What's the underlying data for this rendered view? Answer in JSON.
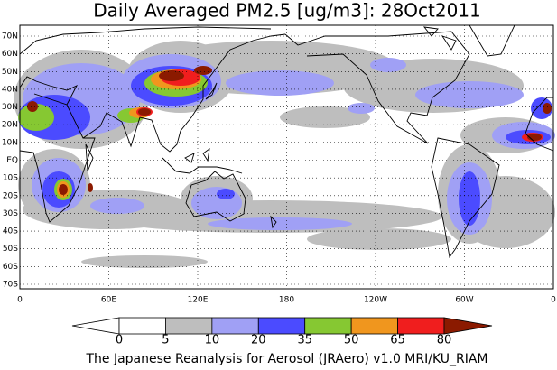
{
  "title": "Daily Averaged PM2.5 [ug/m3]: 28Oct2011",
  "lat_labels": [
    "70N",
    "60N",
    "50N",
    "40N",
    "30N",
    "20N",
    "10N",
    "EQ",
    "10S",
    "20S",
    "30S",
    "40S",
    "50S",
    "60S",
    "70S"
  ],
  "lon_labels": [
    "0",
    "60E",
    "120E",
    "180",
    "120W",
    "60W",
    "0"
  ],
  "colorbar": {
    "levels": [
      0,
      5,
      10,
      20,
      35,
      50,
      65,
      80
    ],
    "colors": [
      "#ffffff",
      "#ffffff",
      "#bebebe",
      "#a0a0f5",
      "#4b4bff",
      "#86c832",
      "#f0961e",
      "#f01e1e",
      "#8b1a00"
    ]
  },
  "footer": "The Japanese Reanalysis for Aerosol (JRAero) v1.0 MRI/KU_RIAM"
}
